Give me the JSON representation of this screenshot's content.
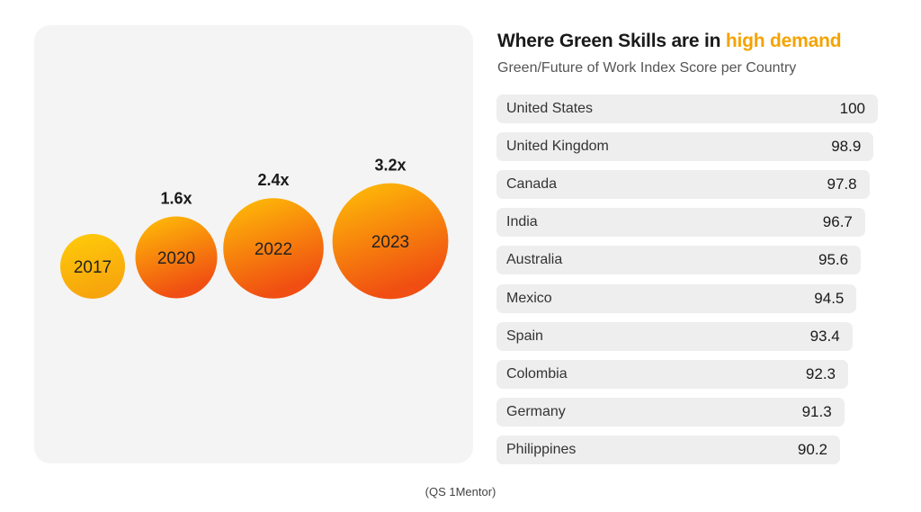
{
  "title": {
    "main": "Where Green Skills are in ",
    "highlight": "high demand"
  },
  "subtitle": "Green/Future of Work Index Score per Country",
  "source": "(QS 1Mentor)",
  "colors": {
    "highlight": "#f5a300",
    "bubble_light": "#ffc107",
    "bubble_dark": "#f04e12",
    "row_bg": "#eeeeee",
    "panel_bg": "#f4f4f4"
  },
  "chart_data": [
    {
      "type": "bubble",
      "categories": [
        "2017",
        "2020",
        "2022",
        "2023"
      ],
      "values": [
        1,
        1.6,
        2.4,
        3.2
      ],
      "data_labels": [
        "",
        "1.6x",
        "2.4x",
        "3.2x"
      ]
    },
    {
      "type": "bar",
      "categories": [
        "United States",
        "United Kingdom",
        "Canada",
        "India",
        "Australia",
        "Mexico",
        "Spain",
        "Colombia",
        "Germany",
        "Philippines"
      ],
      "values": [
        100,
        98.9,
        97.8,
        96.7,
        95.6,
        94.5,
        93.4,
        92.3,
        91.3,
        90.2
      ],
      "value_labels": [
        "100",
        "98.9",
        "97.8",
        "96.7",
        "95.6",
        "94.5",
        "93.4",
        "92.3",
        "91.3",
        "90.2"
      ]
    }
  ]
}
